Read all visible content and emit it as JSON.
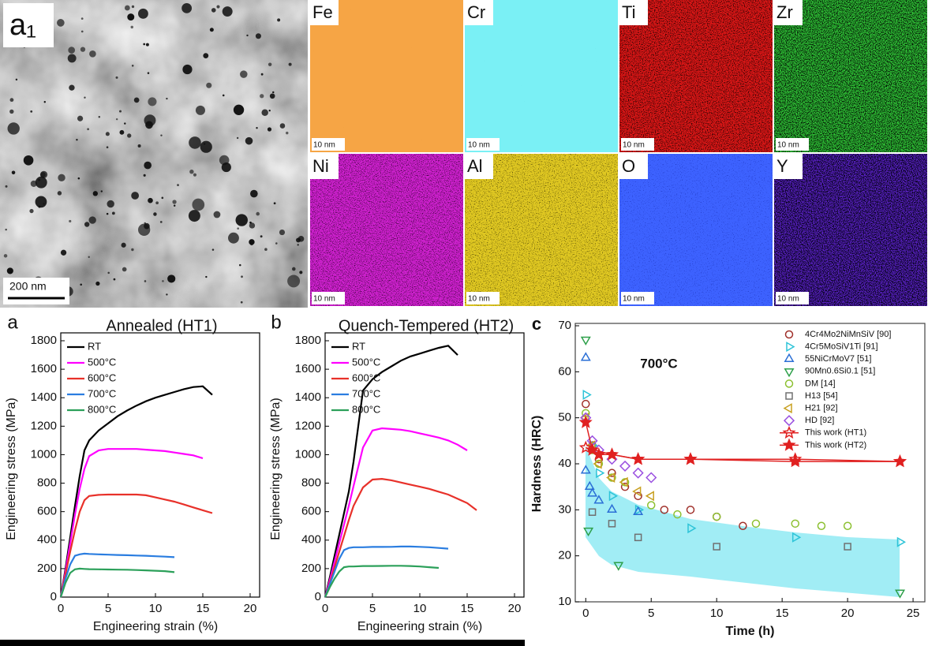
{
  "tem": {
    "label": "a₁",
    "scale": "200 nm"
  },
  "maps": [
    {
      "element": "Fe",
      "scale": "10 nm"
    },
    {
      "element": "Cr",
      "scale": "10 nm"
    },
    {
      "element": "Ti",
      "scale": "10 nm"
    },
    {
      "element": "Zr",
      "scale": "10 nm"
    },
    {
      "element": "Ni",
      "scale": "10 nm"
    },
    {
      "element": "Al",
      "scale": "10 nm"
    },
    {
      "element": "O",
      "scale": "10 nm"
    },
    {
      "element": "Y",
      "scale": "10 nm"
    }
  ],
  "chart_data": [
    {
      "type": "line",
      "panel": "a",
      "title": "Annealed (HT1)",
      "xlabel": "Engineering strain (%)",
      "ylabel": "Engineering stress (MPa)",
      "xlim": [
        0,
        20
      ],
      "ylim": [
        0,
        1800
      ],
      "xticks": [
        0,
        5,
        10,
        15,
        20
      ],
      "yticks": [
        0,
        200,
        400,
        600,
        800,
        1000,
        1200,
        1400,
        1600,
        1800
      ],
      "x": [
        0,
        0.5,
        1,
        1.5,
        2,
        2.5,
        3,
        4,
        5,
        6,
        7,
        8,
        9,
        10,
        11,
        12,
        13,
        14,
        15,
        16
      ],
      "series": [
        {
          "name": "RT",
          "color": "#000000",
          "values": [
            0,
            200,
            420,
            640,
            850,
            1030,
            1100,
            1170,
            1220,
            1270,
            1310,
            1345,
            1375,
            1400,
            1420,
            1440,
            1460,
            1475,
            1480,
            1420
          ]
        },
        {
          "name": "500°C",
          "color": "#ff00ff",
          "values": [
            0,
            180,
            380,
            580,
            760,
            900,
            990,
            1030,
            1040,
            1040,
            1040,
            1040,
            1035,
            1030,
            1025,
            1015,
            1005,
            995,
            975,
            null
          ]
        },
        {
          "name": "600°C",
          "color": "#e8312a",
          "values": [
            0,
            160,
            320,
            470,
            600,
            680,
            710,
            718,
            720,
            720,
            720,
            720,
            715,
            700,
            685,
            670,
            650,
            630,
            610,
            590
          ]
        },
        {
          "name": "700°C",
          "color": "#2a7de0",
          "values": [
            0,
            130,
            230,
            290,
            300,
            305,
            303,
            300,
            298,
            296,
            294,
            292,
            290,
            287,
            284,
            280,
            null,
            null,
            null,
            null
          ]
        },
        {
          "name": "800°C",
          "color": "#2ca05a",
          "values": [
            0,
            100,
            170,
            195,
            200,
            198,
            196,
            195,
            194,
            193,
            192,
            190,
            188,
            185,
            182,
            175,
            null,
            null,
            null,
            null
          ]
        }
      ]
    },
    {
      "type": "line",
      "panel": "b",
      "title": "Quench-Tempered (HT2)",
      "xlabel": "Engineering strain (%)",
      "ylabel": "Engineering stress (MPa)",
      "xlim": [
        0,
        20
      ],
      "ylim": [
        0,
        1800
      ],
      "xticks": [
        0,
        5,
        10,
        15,
        20
      ],
      "yticks": [
        0,
        200,
        400,
        600,
        800,
        1000,
        1200,
        1400,
        1600,
        1800
      ],
      "x": [
        0,
        0.5,
        1,
        1.5,
        2,
        2.5,
        3,
        4,
        5,
        6,
        7,
        8,
        9,
        10,
        11,
        12,
        13,
        14,
        15,
        16
      ],
      "series": [
        {
          "name": "RT",
          "color": "#000000",
          "values": [
            0,
            140,
            290,
            440,
            590,
            740,
            950,
            1450,
            1530,
            1580,
            1620,
            1660,
            1690,
            1710,
            1730,
            1750,
            1765,
            1700,
            null,
            null
          ]
        },
        {
          "name": "500°C",
          "color": "#ff00ff",
          "values": [
            0,
            120,
            250,
            380,
            510,
            640,
            780,
            1050,
            1170,
            1185,
            1180,
            1175,
            1165,
            1150,
            1135,
            1120,
            1100,
            1070,
            1030,
            null
          ]
        },
        {
          "name": "600°C",
          "color": "#e8312a",
          "values": [
            0,
            100,
            210,
            320,
            430,
            540,
            640,
            770,
            825,
            830,
            820,
            805,
            790,
            775,
            760,
            740,
            720,
            690,
            660,
            610
          ]
        },
        {
          "name": "700°C",
          "color": "#2a7de0",
          "values": [
            0,
            90,
            180,
            270,
            330,
            345,
            350,
            350,
            352,
            352,
            353,
            355,
            355,
            353,
            350,
            345,
            340,
            null,
            null,
            null
          ]
        },
        {
          "name": "800°C",
          "color": "#2ca05a",
          "values": [
            0,
            70,
            130,
            180,
            210,
            215,
            215,
            218,
            218,
            219,
            220,
            220,
            218,
            215,
            210,
            205,
            null,
            null,
            null,
            null
          ]
        }
      ]
    },
    {
      "type": "scatter",
      "panel": "c",
      "annotation": "700°C",
      "xlabel": "Time (h)",
      "ylabel": "Hardness (HRC)",
      "xlim": [
        -0.8,
        25.9
      ],
      "ylim": [
        10,
        70
      ],
      "xticks": [
        0,
        5,
        10,
        15,
        20,
        25
      ],
      "yticks": [
        10,
        20,
        30,
        40,
        50,
        60,
        70
      ],
      "series": [
        {
          "name": "4Cr4Mo2NiMnSiV [90]",
          "color": "#a0302a",
          "marker": "hexagon",
          "x": [
            0,
            0.5,
            1,
            2,
            3,
            4,
            6,
            8,
            10,
            12
          ],
          "values": [
            53,
            44,
            41,
            38,
            35,
            33,
            30,
            30,
            28.5,
            26.5
          ]
        },
        {
          "name": "4Cr5MoSiV1Ti [91]",
          "color": "#2ec4d8",
          "marker": "triangle-right",
          "x": [
            0,
            0.5,
            1,
            2,
            4,
            8,
            16,
            24
          ],
          "values": [
            55,
            44,
            38,
            33,
            30,
            26,
            24,
            23
          ]
        },
        {
          "name": "55NiCrMoV7 [51]",
          "color": "#2b6fd6",
          "marker": "triangle-up",
          "x": [
            0,
            0,
            0.3,
            0.5,
            1,
            2,
            4
          ],
          "values": [
            63,
            38.5,
            35,
            33.5,
            32,
            30,
            29.5
          ]
        },
        {
          "name": "90Mn0.6Si0.1 [51]",
          "color": "#2ea04a",
          "marker": "triangle-down",
          "x": [
            0,
            0.2,
            2.5,
            24
          ],
          "values": [
            67,
            25.5,
            18,
            12
          ]
        },
        {
          "name": "DM [14]",
          "color": "#8cc030",
          "marker": "circle",
          "x": [
            0,
            0.5,
            1,
            2,
            3,
            5,
            7,
            10,
            13,
            16,
            18,
            20
          ],
          "values": [
            51,
            43,
            40,
            37,
            36,
            31,
            29,
            28.5,
            27,
            27,
            26.5,
            26.5
          ]
        },
        {
          "name": "H13 [54]",
          "color": "#707070",
          "marker": "square",
          "x": [
            0.5,
            2,
            4,
            10,
            20
          ],
          "values": [
            29.5,
            27,
            24,
            22,
            22
          ]
        },
        {
          "name": "H21 [92]",
          "color": "#c8a020",
          "marker": "triangle-left",
          "x": [
            0,
            0.5,
            1,
            2,
            3,
            4,
            5
          ],
          "values": [
            50,
            44,
            40,
            37,
            36,
            34,
            33
          ]
        },
        {
          "name": "HD [92]",
          "color": "#9a50e0",
          "marker": "diamond",
          "x": [
            0,
            0.5,
            1,
            2,
            3,
            4,
            5
          ],
          "values": [
            50,
            45,
            43,
            41,
            39.5,
            38,
            37
          ]
        },
        {
          "name": "This work (HT1)",
          "color": "#e02020",
          "marker": "star-open",
          "line": true,
          "x": [
            0,
            2,
            4,
            8,
            16,
            24
          ],
          "values": [
            43.5,
            42,
            41,
            41,
            41,
            40.5
          ]
        },
        {
          "name": "This work (HT2)",
          "color": "#e02020",
          "marker": "star-filled",
          "line": true,
          "x": [
            0,
            0.5,
            1,
            2,
            4,
            8,
            16,
            24
          ],
          "values": [
            49,
            43,
            42,
            42,
            41,
            41,
            40.5,
            40.5
          ]
        }
      ]
    }
  ]
}
